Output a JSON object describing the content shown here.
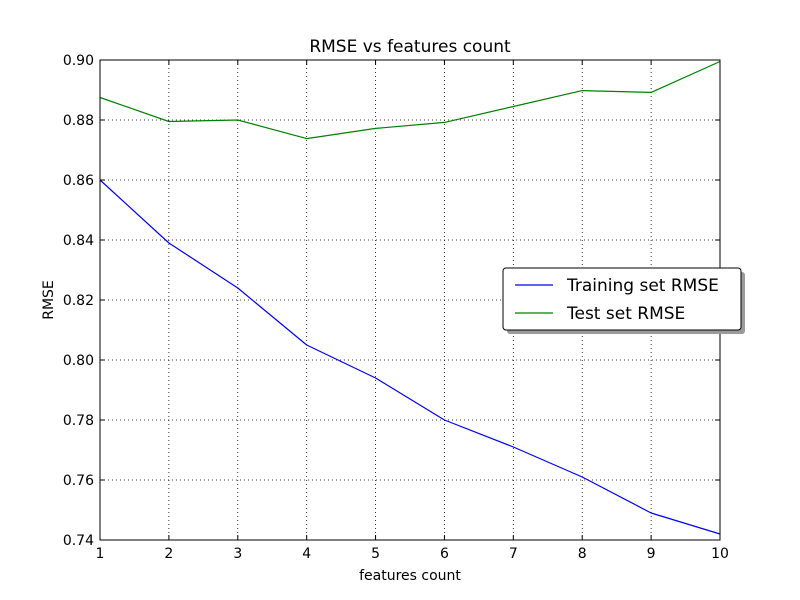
{
  "chart_data": {
    "type": "line",
    "title": "RMSE vs features count",
    "xlabel": "features count",
    "ylabel": "RMSE",
    "x": [
      1,
      2,
      3,
      4,
      5,
      6,
      7,
      8,
      9,
      10
    ],
    "xlim": [
      1,
      10
    ],
    "ylim": [
      0.74,
      0.9
    ],
    "x_ticks": [
      "1",
      "2",
      "3",
      "4",
      "5",
      "6",
      "7",
      "8",
      "9",
      "10"
    ],
    "y_ticks": [
      "0.74",
      "0.76",
      "0.78",
      "0.80",
      "0.82",
      "0.84",
      "0.86",
      "0.88",
      "0.90"
    ],
    "grid": true,
    "legend_position": "center-right",
    "series": [
      {
        "name": "Training set RMSE",
        "color": "#0000ff",
        "values": [
          0.86,
          0.839,
          0.824,
          0.805,
          0.794,
          0.78,
          0.771,
          0.761,
          0.749,
          0.742
        ]
      },
      {
        "name": "Test set RMSE",
        "color": "#008000",
        "values": [
          0.8875,
          0.8795,
          0.88,
          0.8738,
          0.8772,
          0.8792,
          0.8845,
          0.8898,
          0.8892,
          0.8995
        ]
      }
    ]
  }
}
